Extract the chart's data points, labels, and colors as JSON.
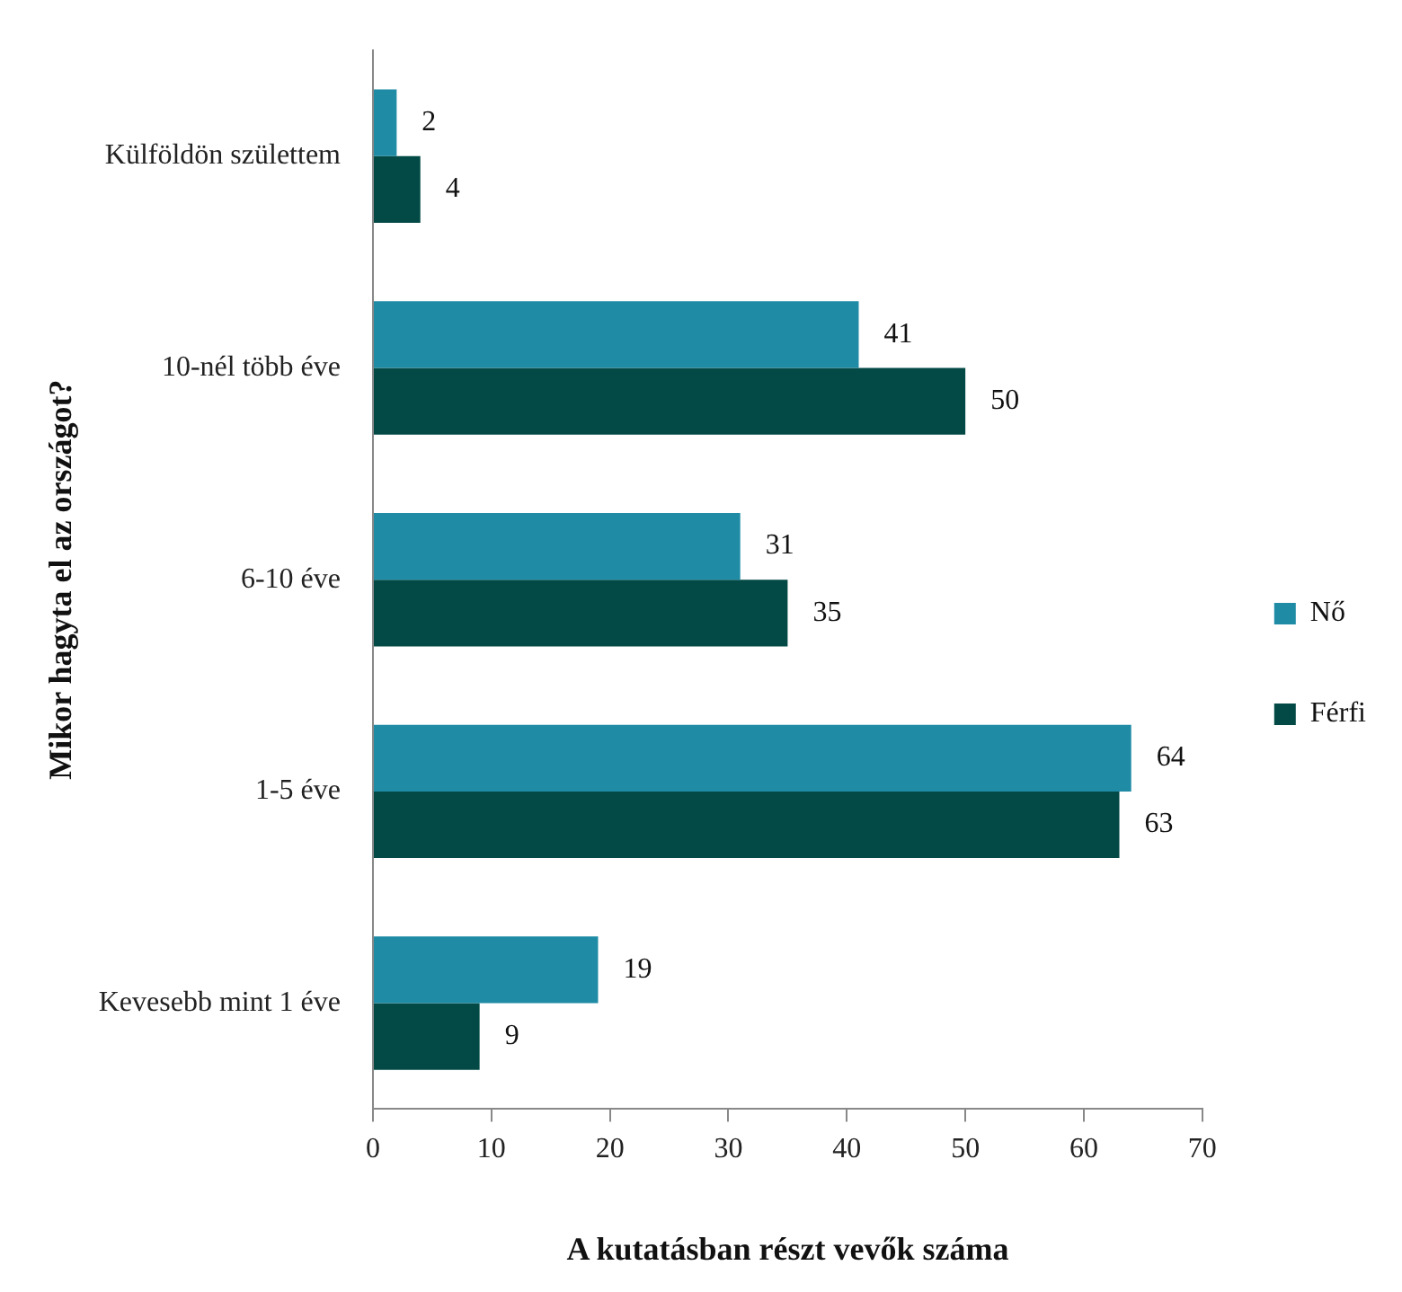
{
  "chart_data": {
    "type": "bar",
    "orientation": "horizontal",
    "xlabel": "A kutatásban részt vevők száma",
    "ylabel": "Mikor hagyta el az országot?",
    "categories": [
      "Külföldön születtem",
      "10-nél több éve",
      "6-10 éve",
      "1-5 éve",
      "Kevesebb mint 1 éve"
    ],
    "series": [
      {
        "name": "Nő",
        "color": "#1f8ba5",
        "values": [
          2,
          41,
          31,
          64,
          19
        ]
      },
      {
        "name": "Férfi",
        "color": "#034a46",
        "values": [
          4,
          50,
          35,
          63,
          9
        ]
      }
    ],
    "xlim": [
      0,
      70
    ],
    "xticks": [
      0,
      10,
      20,
      30,
      40,
      50,
      60,
      70
    ],
    "grid": false,
    "legend": "right",
    "data_labels": true
  }
}
